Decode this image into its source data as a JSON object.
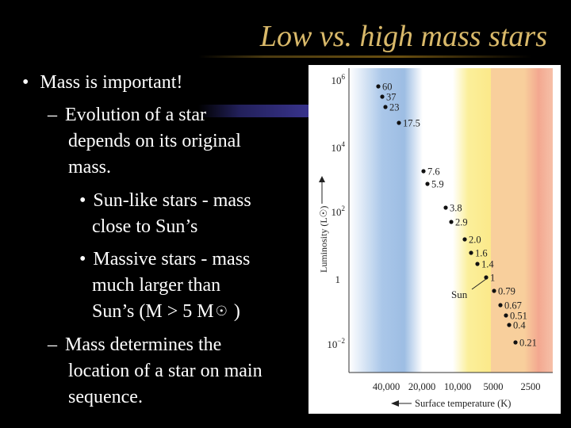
{
  "slide": {
    "title": "Low vs. high mass stars",
    "bullets": [
      {
        "marker": "•",
        "text": "Mass is important!"
      },
      {
        "marker": "–",
        "text": "Evolution of a star"
      },
      {
        "marker": "",
        "text": "depends on its original"
      },
      {
        "marker": "",
        "text": "mass."
      },
      {
        "marker": "•",
        "text": "Sun-like stars - mass"
      },
      {
        "marker": "",
        "text": "close to Sun’s"
      },
      {
        "marker": "•",
        "text": "Massive stars - mass"
      },
      {
        "marker": "",
        "text": "much larger than"
      },
      {
        "marker": "",
        "text": "Sun’s (M > 5 M"
      },
      {
        "marker": "–",
        "text": "Mass determines the"
      },
      {
        "marker": "",
        "text": "location of a star on main"
      },
      {
        "marker": "",
        "text": "sequence."
      }
    ],
    "sun_symbol": "☉",
    "close_paren": ")"
  },
  "diagram": {
    "y_axis_label": "Luminosity (L☉)",
    "y_ticks": [
      {
        "base": "10",
        "exp": "6"
      },
      {
        "base": "10",
        "exp": "4"
      },
      {
        "base": "10",
        "exp": "2"
      },
      {
        "base": "1",
        "exp": ""
      },
      {
        "base": "10",
        "exp": "−2"
      }
    ],
    "x_ticks": [
      "40,000",
      "20,000",
      "10,000",
      "5000",
      "2500"
    ],
    "x_axis_label": "Surface temperature (K)",
    "sun_label": "Sun",
    "band_colors": [
      "#aac7e9",
      "#ffffff",
      "#fbef9a",
      "#f8cf9c",
      "#f3a890"
    ],
    "stars": [
      {
        "mass": "60"
      },
      {
        "mass": "37"
      },
      {
        "mass": "23"
      },
      {
        "mass": "17.5"
      },
      {
        "mass": "7.6"
      },
      {
        "mass": "5.9"
      },
      {
        "mass": "3.8"
      },
      {
        "mass": "2.9"
      },
      {
        "mass": "2.0"
      },
      {
        "mass": "1.6"
      },
      {
        "mass": "1.4"
      },
      {
        "mass": "1"
      },
      {
        "mass": "0.79"
      },
      {
        "mass": "0.67"
      },
      {
        "mass": "0.51"
      },
      {
        "mass": "0.4"
      },
      {
        "mass": "0.21"
      }
    ]
  }
}
